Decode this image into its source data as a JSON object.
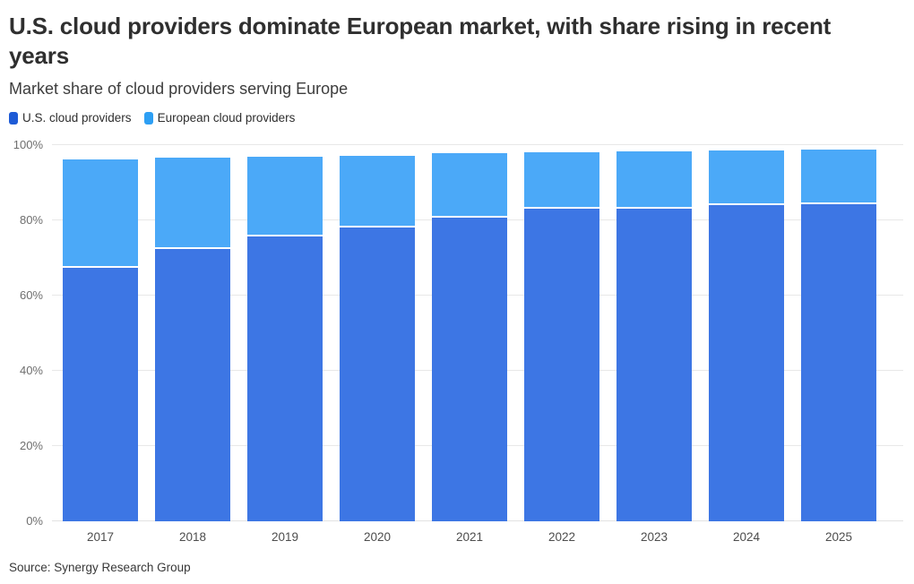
{
  "header": {
    "title": "U.S. cloud providers dominate European market, with share rising in recent years",
    "subtitle": "Market share of cloud providers serving Europe"
  },
  "chart_data": {
    "type": "bar",
    "stacked": true,
    "title": "U.S. cloud providers dominate European market, with share rising in recent years",
    "subtitle": "Market share of cloud providers serving Europe",
    "categories": [
      "2017",
      "2018",
      "2019",
      "2020",
      "2021",
      "2022",
      "2023",
      "2024",
      "2025"
    ],
    "series": [
      {
        "name": "U.S. cloud providers",
        "color": "#3d76e4",
        "legend_color": "#1e5bd6",
        "values": [
          67.6,
          72.3,
          75.7,
          78.1,
          80.6,
          83.1,
          83.1,
          84.0,
          84.3
        ]
      },
      {
        "name": "European cloud providers",
        "color": "#4ba9f8",
        "legend_color": "#2d9ff4",
        "values": [
          28.7,
          24.3,
          21.3,
          19.1,
          17.2,
          15.1,
          15.3,
          14.6,
          14.5
        ]
      }
    ],
    "xlabel": "",
    "ylabel": "",
    "ylim": [
      0,
      100
    ],
    "yticks": [
      0,
      20,
      40,
      60,
      80,
      100
    ],
    "ytick_suffix": "%",
    "grid": true,
    "legend_position": "top-left"
  },
  "footer": {
    "source": "Source: Synergy Research Group"
  }
}
